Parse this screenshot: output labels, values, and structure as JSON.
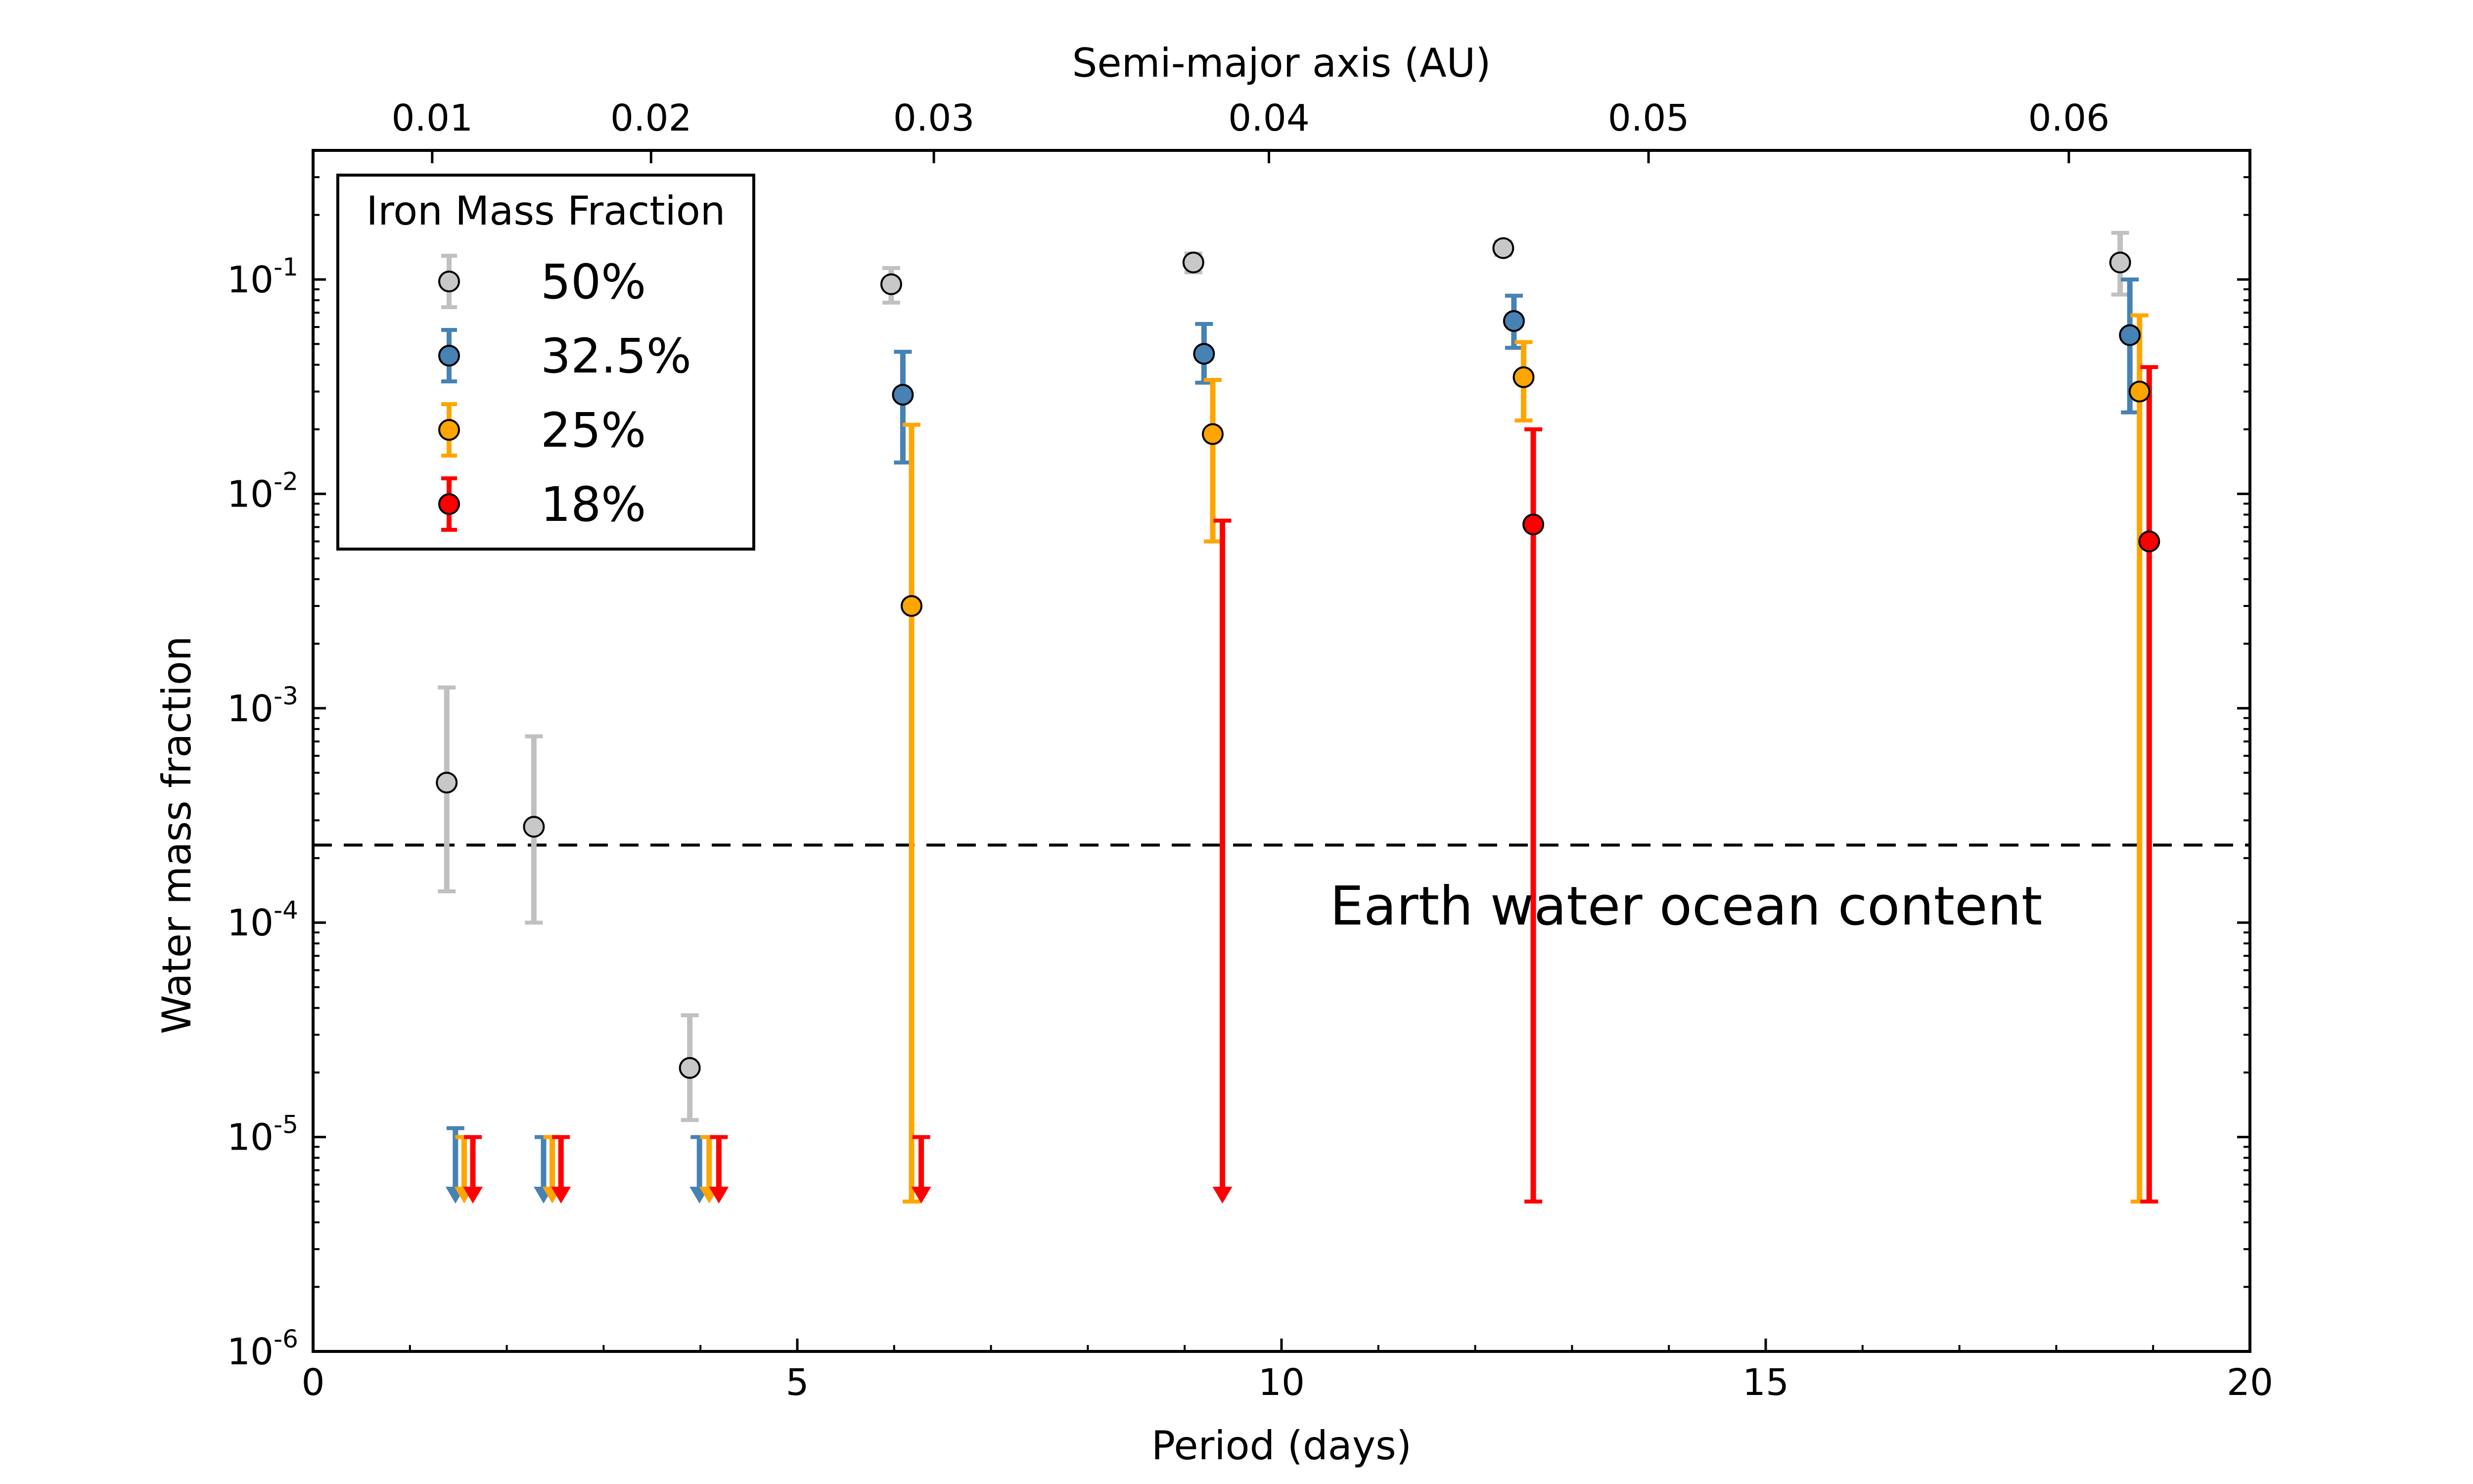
{
  "chart_data": {
    "type": "scatter",
    "title": "",
    "xlabel": "Period (days)",
    "ylabel": "Water mass fraction",
    "x2label": "Semi-major axis (AU)",
    "xlim": [
      0,
      20
    ],
    "ylim": [
      1e-06,
      0.4
    ],
    "yscale": "log",
    "grid": false,
    "legend_position": "top-left",
    "legend_title": "Iron Mass Fraction",
    "x_ticks": [
      {
        "value": 0,
        "label": "0"
      },
      {
        "value": 5,
        "label": "5"
      },
      {
        "value": 10,
        "label": "10"
      },
      {
        "value": 15,
        "label": "15"
      },
      {
        "value": 20,
        "label": "20"
      }
    ],
    "y_ticks": [
      {
        "value": 1e-06,
        "base": "10",
        "exp": "-6"
      },
      {
        "value": 1e-05,
        "base": "10",
        "exp": "-5"
      },
      {
        "value": 0.0001,
        "base": "10",
        "exp": "-4"
      },
      {
        "value": 0.001,
        "base": "10",
        "exp": "-3"
      },
      {
        "value": 0.01,
        "base": "10",
        "exp": "-2"
      },
      {
        "value": 0.1,
        "base": "10",
        "exp": "-1"
      }
    ],
    "x2_ticks": [
      {
        "period": 1.23,
        "label": "0.01"
      },
      {
        "period": 3.49,
        "label": "0.02"
      },
      {
        "period": 6.41,
        "label": "0.03"
      },
      {
        "period": 9.87,
        "label": "0.04"
      },
      {
        "period": 13.79,
        "label": "0.05"
      },
      {
        "period": 18.13,
        "label": "0.06"
      }
    ],
    "reference_line": {
      "value": 0.00023,
      "label": "Earth water ocean content",
      "label_x": 10.5,
      "label_y": 0.00012
    },
    "series": [
      {
        "name": "50%",
        "color": "#c0c0c0",
        "marker": "#c8c8c8",
        "points": [
          {
            "x": 1.38,
            "y": 0.00045,
            "ylo": 0.00014,
            "yhi": 0.00125
          },
          {
            "x": 2.28,
            "y": 0.00028,
            "ylo": 0.0001,
            "yhi": 0.00074
          },
          {
            "x": 3.89,
            "y": 2.1e-05,
            "ylo": 1.2e-05,
            "yhi": 3.7e-05
          },
          {
            "x": 5.97,
            "y": 0.095,
            "ylo": 0.078,
            "yhi": 0.113
          },
          {
            "x": 9.09,
            "y": 0.12,
            "ylo": 0.108,
            "yhi": 0.132
          },
          {
            "x": 12.29,
            "y": 0.14,
            "ylo": 0.13,
            "yhi": 0.15
          },
          {
            "x": 18.66,
            "y": 0.12,
            "ylo": 0.085,
            "yhi": 0.165
          }
        ],
        "upper_limits": []
      },
      {
        "name": "32.5%",
        "color": "#4682b4",
        "marker": "#4682b4",
        "points": [
          {
            "x": 6.09,
            "y": 0.029,
            "ylo": 0.014,
            "yhi": 0.046
          },
          {
            "x": 9.2,
            "y": 0.045,
            "ylo": 0.033,
            "yhi": 0.062
          },
          {
            "x": 12.4,
            "y": 0.064,
            "ylo": 0.048,
            "yhi": 0.084
          },
          {
            "x": 18.76,
            "y": 0.055,
            "ylo": 0.024,
            "yhi": 0.1
          }
        ],
        "upper_limits": [
          {
            "x": 1.47,
            "y": 1.1e-05
          },
          {
            "x": 2.38,
            "y": 1e-05
          },
          {
            "x": 3.99,
            "y": 1e-05
          }
        ]
      },
      {
        "name": "25%",
        "color": "#ffa500",
        "marker": "#ffa500",
        "points": [
          {
            "x": 6.18,
            "y": 0.003,
            "ylo": 5e-06,
            "yhi": 0.021
          },
          {
            "x": 9.29,
            "y": 0.019,
            "ylo": 0.006,
            "yhi": 0.034
          },
          {
            "x": 12.5,
            "y": 0.035,
            "ylo": 0.022,
            "yhi": 0.051
          },
          {
            "x": 18.86,
            "y": 0.03,
            "ylo": 5e-06,
            "yhi": 0.068
          }
        ],
        "upper_limits": [
          {
            "x": 1.56,
            "y": 1e-05
          },
          {
            "x": 2.47,
            "y": 1e-05
          },
          {
            "x": 4.09,
            "y": 1e-05
          }
        ]
      },
      {
        "name": "18%",
        "color": "#ff0000",
        "marker": "#ff0000",
        "points": [
          {
            "x": 12.6,
            "y": 0.0072,
            "ylo": 5e-06,
            "yhi": 0.02
          },
          {
            "x": 18.96,
            "y": 0.006,
            "ylo": 5e-06,
            "yhi": 0.039
          }
        ],
        "upper_limits": [
          {
            "x": 1.65,
            "y": 1e-05
          },
          {
            "x": 2.56,
            "y": 1e-05
          },
          {
            "x": 4.19,
            "y": 1e-05
          },
          {
            "x": 6.28,
            "y": 1e-05
          },
          {
            "x": 9.39,
            "y": 0.0075
          }
        ]
      }
    ]
  }
}
